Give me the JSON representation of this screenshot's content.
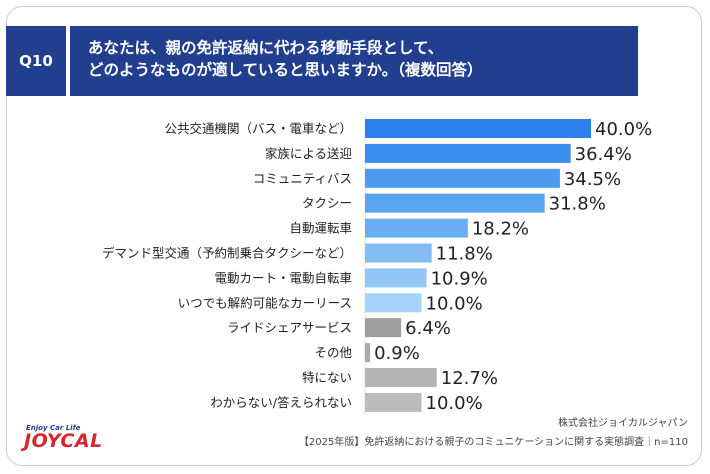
{
  "question": {
    "badge": "Q10",
    "line1": "あなたは、親の免許返納に代わる移動手段として、",
    "line2": "どのようなものが適していると思いますか。（複数回答）"
  },
  "chart_data": {
    "type": "bar",
    "orientation": "horizontal",
    "unit": "%",
    "categories": [
      "公共交通機関（バス・電車など）",
      "家族による送迎",
      "コミュニティバス",
      "タクシー",
      "自動運転車",
      "デマンド型交通（予約制乗合タクシーなど）",
      "電動カート・電動自転車",
      "いつでも解約可能なカーリース",
      "ライドシェアサービス",
      "その他",
      "特にない",
      "わからない/答えられない"
    ],
    "values": [
      40.0,
      36.4,
      34.5,
      31.8,
      18.2,
      11.8,
      10.9,
      10.0,
      6.4,
      0.9,
      12.7,
      10.0
    ],
    "value_labels": [
      "40.0%",
      "36.4%",
      "34.5%",
      "31.8%",
      "18.2%",
      "11.8%",
      "10.9%",
      "10.0%",
      "6.4%",
      "0.9%",
      "12.7%",
      "10.0%"
    ],
    "colors": [
      "#2a7fe8",
      "#3a8eec",
      "#4d9aee",
      "#5aa3ef",
      "#6badf0",
      "#83bcf3",
      "#93c6f5",
      "#a6d1f8",
      "#9e9e9e",
      "#aaaaaa",
      "#b4b4b4",
      "#bcbcbc"
    ],
    "xlim": [
      0,
      40
    ]
  },
  "footer": {
    "company": "株式会社ジョイカルジャパン",
    "source": "【2025年版】免許返納における親子のコミュニケーションに関する実態調査｜n=110"
  },
  "logo": {
    "tagline": "Enjoy Car Life",
    "brand": "JOYCAL"
  }
}
